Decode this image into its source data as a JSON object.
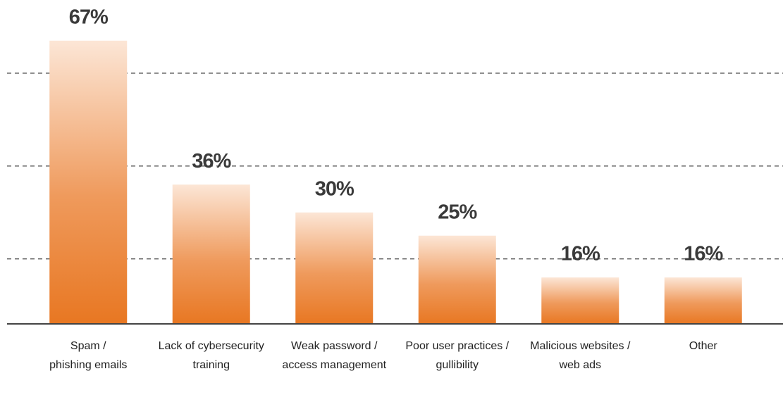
{
  "chart_data": {
    "type": "bar",
    "categories": [
      [
        "Spam /",
        "phishing emails"
      ],
      [
        "Lack of cybersecurity",
        "training"
      ],
      [
        "Weak password /",
        "access management"
      ],
      [
        "Poor user practices /",
        "gullibility"
      ],
      [
        "Malicious websites /",
        "web ads"
      ],
      [
        "Other"
      ]
    ],
    "values": [
      67,
      36,
      30,
      25,
      16,
      16
    ],
    "value_labels": [
      "67%",
      "36%",
      "30%",
      "25%",
      "16%",
      "16%"
    ],
    "color": "#e87722",
    "ylim": [
      6,
      75
    ],
    "yticks": [
      20,
      40,
      60
    ],
    "grid": true
  }
}
